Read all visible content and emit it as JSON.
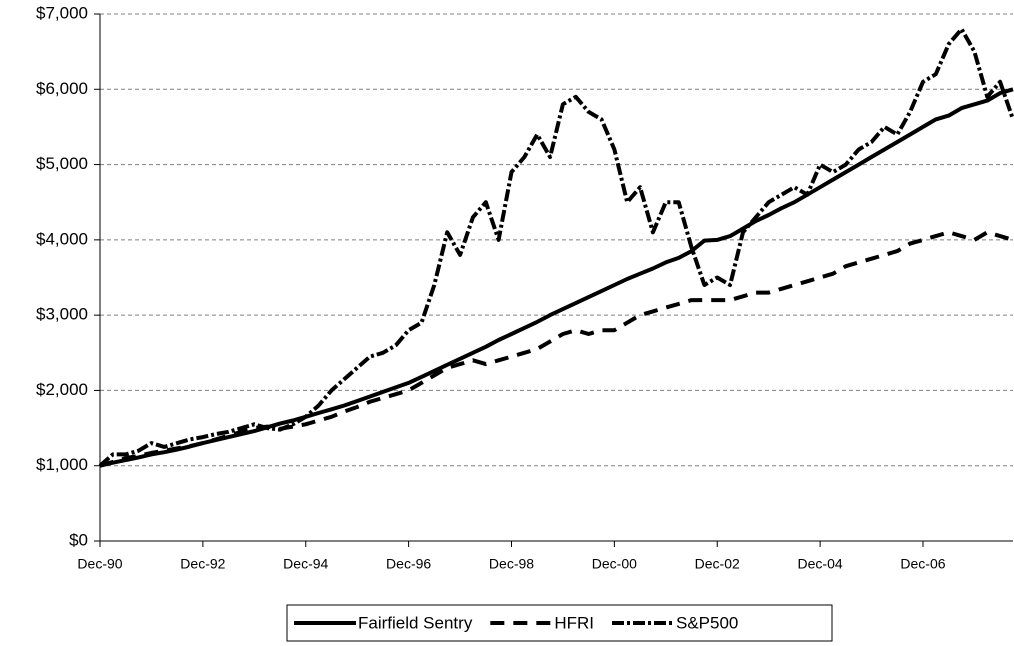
{
  "chart_data": {
    "type": "line",
    "categories": [
      "Dec-90",
      null,
      null,
      null,
      null,
      null,
      null,
      null,
      "Dec-92",
      null,
      null,
      null,
      null,
      null,
      null,
      null,
      "Dec-94",
      null,
      null,
      null,
      null,
      null,
      null,
      null,
      "Dec-96",
      null,
      null,
      null,
      null,
      null,
      null,
      null,
      "Dec-98",
      null,
      null,
      null,
      null,
      null,
      null,
      null,
      "Dec-00",
      null,
      null,
      null,
      null,
      null,
      null,
      null,
      "Dec-02",
      null,
      null,
      null,
      null,
      null,
      null,
      null,
      "Dec-04",
      null,
      null,
      null,
      null,
      null,
      null,
      null,
      "Dec-06",
      null,
      null,
      null,
      null,
      null,
      null,
      null
    ],
    "series": [
      {
        "name": "Fairfield Sentry",
        "color": "#000000",
        "line_style": "solid",
        "values": [
          1000,
          1040,
          1075,
          1110,
          1150,
          1180,
          1215,
          1255,
          1300,
          1340,
          1380,
          1420,
          1460,
          1510,
          1560,
          1600,
          1650,
          1700,
          1750,
          1800,
          1860,
          1920,
          1980,
          2040,
          2100,
          2180,
          2260,
          2340,
          2420,
          2500,
          2580,
          2670,
          2750,
          2830,
          2910,
          3000,
          3080,
          3160,
          3240,
          3320,
          3400,
          3480,
          3550,
          3620,
          3700,
          3760,
          3850,
          3990,
          4000,
          4050,
          4150,
          4250,
          4330,
          4420,
          4500,
          4600,
          4700,
          4800,
          4900,
          5000,
          5100,
          5200,
          5300,
          5400,
          5500,
          5600,
          5650,
          5750,
          5800,
          5850,
          5950,
          6000
        ]
      },
      {
        "name": "HFRI",
        "color": "#000000",
        "line_style": "dashed",
        "values": [
          1000,
          1050,
          1100,
          1130,
          1170,
          1200,
          1230,
          1260,
          1300,
          1350,
          1400,
          1450,
          1500,
          1520,
          1490,
          1520,
          1550,
          1600,
          1650,
          1720,
          1780,
          1850,
          1900,
          1950,
          2000,
          2100,
          2200,
          2300,
          2350,
          2400,
          2350,
          2400,
          2450,
          2500,
          2550,
          2650,
          2750,
          2800,
          2750,
          2800,
          2800,
          2900,
          3000,
          3050,
          3100,
          3150,
          3200,
          3200,
          3200,
          3200,
          3250,
          3300,
          3300,
          3350,
          3400,
          3450,
          3500,
          3550,
          3650,
          3700,
          3750,
          3800,
          3850,
          3950,
          4000,
          4050,
          4100,
          4050,
          4000,
          4100,
          4050,
          4000
        ]
      },
      {
        "name": "S&P500",
        "color": "#000000",
        "line_style": "dash-dot",
        "values": [
          1000,
          1150,
          1150,
          1200,
          1300,
          1250,
          1300,
          1350,
          1380,
          1420,
          1450,
          1500,
          1550,
          1500,
          1480,
          1550,
          1650,
          1800,
          2000,
          2150,
          2300,
          2450,
          2500,
          2600,
          2800,
          2900,
          3400,
          4100,
          3800,
          4300,
          4500,
          4000,
          4900,
          5100,
          5400,
          5100,
          5800,
          5900,
          5700,
          5600,
          5200,
          4500,
          4700,
          4100,
          4500,
          4500,
          3900,
          3400,
          3500,
          3400,
          4100,
          4300,
          4500,
          4600,
          4700,
          4600,
          5000,
          4900,
          5000,
          5200,
          5300,
          5500,
          5400,
          5700,
          6100,
          6200,
          6600,
          6800,
          6500,
          5900,
          6100,
          5600
        ]
      }
    ],
    "ylim": [
      0,
      7000
    ],
    "yticks": [
      {
        "value": 0,
        "label": "$0"
      },
      {
        "value": 1000,
        "label": "$1,000"
      },
      {
        "value": 2000,
        "label": "$2,000"
      },
      {
        "value": 3000,
        "label": "$3,000"
      },
      {
        "value": 4000,
        "label": "$4,000"
      },
      {
        "value": 5000,
        "label": "$5,000"
      },
      {
        "value": 6000,
        "label": "$6,000"
      },
      {
        "value": 7000,
        "label": "$7,000"
      }
    ],
    "grid": true,
    "legend": "bottom"
  }
}
